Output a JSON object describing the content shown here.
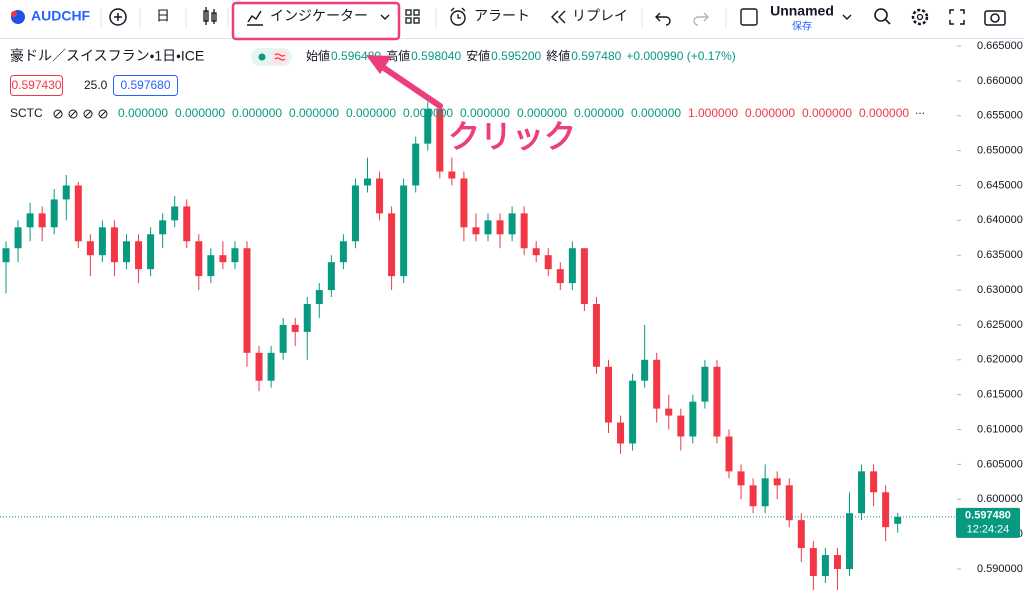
{
  "toolbar": {
    "symbol": "AUDCHF",
    "interval": "日",
    "indicators": "インジケーター",
    "alert": "アラート",
    "replay": "リプレイ",
    "layout_name": "Unnamed",
    "save": "保存"
  },
  "legend": {
    "title": "豪ドル／スイスフラン・1日・ICE",
    "ohlc": [
      {
        "label": "始値",
        "value": "0.596480"
      },
      {
        "label": "高値",
        "value": "0.598040"
      },
      {
        "label": "安値",
        "value": "0.595200"
      },
      {
        "label": "終値",
        "value": "0.597480"
      }
    ],
    "change": "+0.000990 (+0.17%)",
    "bid": "0.597430",
    "spread": "25.0",
    "ask": "0.597680",
    "indicator_name": "SCTC",
    "indicator_values": [
      "0.000000",
      "0.000000",
      "0.000000",
      "0.000000",
      "0.000000",
      "0.000000",
      "0.000000",
      "0.000000",
      "0.000000",
      "0.000000",
      "1.000000",
      "0.000000",
      "0.000000",
      "0.000000"
    ],
    "more": "..."
  },
  "annotation": "クリック",
  "chart_data": {
    "type": "candlestick",
    "up_color": "#089981",
    "down_color": "#f23645",
    "ylim": [
      0.5867,
      0.66615
    ],
    "yticks": [
      {
        "value": 0.59,
        "label": "0.590000"
      },
      {
        "value": 0.595,
        "label": "0.595000"
      },
      {
        "value": 0.6,
        "label": "0.600000"
      },
      {
        "value": 0.605,
        "label": "0.605000"
      },
      {
        "value": 0.61,
        "label": "0.610000"
      },
      {
        "value": 0.615,
        "label": "0.615000"
      },
      {
        "value": 0.62,
        "label": "0.620000"
      },
      {
        "value": 0.625,
        "label": "0.625000"
      },
      {
        "value": 0.63,
        "label": "0.630000"
      },
      {
        "value": 0.635,
        "label": "0.635000"
      },
      {
        "value": 0.64,
        "label": "0.640000"
      },
      {
        "value": 0.645,
        "label": "0.645000"
      },
      {
        "value": 0.65,
        "label": "0.650000"
      },
      {
        "value": 0.655,
        "label": "0.655000"
      },
      {
        "value": 0.66,
        "label": "0.660000"
      },
      {
        "value": 0.665,
        "label": "0.665000"
      }
    ],
    "last_price_label": "0.597480",
    "countdown": "12:24:24",
    "candles": [
      [
        0.634,
        0.637,
        0.6295,
        0.636
      ],
      [
        0.636,
        0.64,
        0.634,
        0.639
      ],
      [
        0.639,
        0.6425,
        0.637,
        0.641
      ],
      [
        0.641,
        0.642,
        0.637,
        0.639
      ],
      [
        0.639,
        0.6445,
        0.638,
        0.643
      ],
      [
        0.643,
        0.6465,
        0.64,
        0.645
      ],
      [
        0.645,
        0.6455,
        0.636,
        0.637
      ],
      [
        0.637,
        0.638,
        0.632,
        0.635
      ],
      [
        0.635,
        0.64,
        0.634,
        0.639
      ],
      [
        0.639,
        0.64,
        0.632,
        0.634
      ],
      [
        0.634,
        0.638,
        0.633,
        0.637
      ],
      [
        0.637,
        0.638,
        0.631,
        0.633
      ],
      [
        0.633,
        0.639,
        0.632,
        0.638
      ],
      [
        0.638,
        0.641,
        0.636,
        0.64
      ],
      [
        0.64,
        0.6435,
        0.639,
        0.642
      ],
      [
        0.642,
        0.643,
        0.636,
        0.637
      ],
      [
        0.637,
        0.638,
        0.63,
        0.632
      ],
      [
        0.632,
        0.636,
        0.631,
        0.635
      ],
      [
        0.635,
        0.637,
        0.633,
        0.634
      ],
      [
        0.634,
        0.637,
        0.633,
        0.636
      ],
      [
        0.636,
        0.637,
        0.619,
        0.621
      ],
      [
        0.621,
        0.622,
        0.6155,
        0.617
      ],
      [
        0.617,
        0.622,
        0.616,
        0.621
      ],
      [
        0.621,
        0.626,
        0.62,
        0.625
      ],
      [
        0.625,
        0.626,
        0.622,
        0.624
      ],
      [
        0.624,
        0.629,
        0.62,
        0.628
      ],
      [
        0.628,
        0.631,
        0.626,
        0.63
      ],
      [
        0.63,
        0.635,
        0.629,
        0.634
      ],
      [
        0.634,
        0.638,
        0.633,
        0.637
      ],
      [
        0.637,
        0.646,
        0.636,
        0.645
      ],
      [
        0.645,
        0.649,
        0.644,
        0.646
      ],
      [
        0.646,
        0.647,
        0.64,
        0.641
      ],
      [
        0.641,
        0.642,
        0.63,
        0.632
      ],
      [
        0.632,
        0.646,
        0.631,
        0.645
      ],
      [
        0.645,
        0.652,
        0.644,
        0.651
      ],
      [
        0.651,
        0.657,
        0.65,
        0.656
      ],
      [
        0.656,
        0.6565,
        0.646,
        0.647
      ],
      [
        0.647,
        0.649,
        0.645,
        0.646
      ],
      [
        0.646,
        0.647,
        0.637,
        0.639
      ],
      [
        0.639,
        0.641,
        0.637,
        0.638
      ],
      [
        0.638,
        0.641,
        0.637,
        0.64
      ],
      [
        0.64,
        0.641,
        0.636,
        0.638
      ],
      [
        0.638,
        0.642,
        0.637,
        0.641
      ],
      [
        0.641,
        0.642,
        0.635,
        0.636
      ],
      [
        0.636,
        0.637,
        0.634,
        0.635
      ],
      [
        0.635,
        0.636,
        0.632,
        0.633
      ],
      [
        0.633,
        0.634,
        0.63,
        0.631
      ],
      [
        0.631,
        0.637,
        0.63,
        0.636
      ],
      [
        0.636,
        0.636,
        0.627,
        0.628
      ],
      [
        0.628,
        0.629,
        0.618,
        0.619
      ],
      [
        0.619,
        0.62,
        0.6095,
        0.611
      ],
      [
        0.611,
        0.612,
        0.6065,
        0.608
      ],
      [
        0.608,
        0.618,
        0.607,
        0.617
      ],
      [
        0.617,
        0.625,
        0.616,
        0.62
      ],
      [
        0.62,
        0.621,
        0.611,
        0.613
      ],
      [
        0.613,
        0.615,
        0.61,
        0.612
      ],
      [
        0.612,
        0.613,
        0.607,
        0.609
      ],
      [
        0.609,
        0.615,
        0.608,
        0.614
      ],
      [
        0.614,
        0.62,
        0.613,
        0.619
      ],
      [
        0.619,
        0.62,
        0.608,
        0.609
      ],
      [
        0.609,
        0.61,
        0.603,
        0.604
      ],
      [
        0.604,
        0.605,
        0.6,
        0.602
      ],
      [
        0.602,
        0.603,
        0.598,
        0.599
      ],
      [
        0.599,
        0.605,
        0.598,
        0.603
      ],
      [
        0.603,
        0.604,
        0.6,
        0.602
      ],
      [
        0.602,
        0.603,
        0.596,
        0.597
      ],
      [
        0.597,
        0.598,
        0.591,
        0.593
      ],
      [
        0.593,
        0.594,
        0.587,
        0.589
      ],
      [
        0.589,
        0.593,
        0.588,
        0.592
      ],
      [
        0.592,
        0.593,
        0.587,
        0.59
      ],
      [
        0.59,
        0.601,
        0.589,
        0.598
      ],
      [
        0.598,
        0.605,
        0.597,
        0.604
      ],
      [
        0.604,
        0.605,
        0.599,
        0.601
      ],
      [
        0.601,
        0.602,
        0.594,
        0.596
      ],
      [
        0.59648,
        0.59804,
        0.5952,
        0.59748
      ]
    ]
  }
}
